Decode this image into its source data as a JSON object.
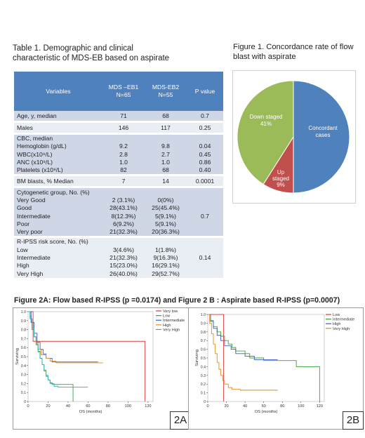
{
  "table1": {
    "title_line1": "Table 1. Demographic and clinical",
    "title_line2": "characteristic of MDS-EB based on aspirate",
    "headers": {
      "variables": "Variables",
      "eb1_line1": "MDS –EB1",
      "eb1_line2": "N=65",
      "eb2_line1": "MDS-EB2",
      "eb2_line2": "N=55",
      "pvalue": "P value"
    },
    "rows": {
      "age": {
        "label": "Age, y, median",
        "eb1": "71",
        "eb2": "68",
        "p": "0.7"
      },
      "males": {
        "label": "Males",
        "eb1": "146",
        "eb2": "117",
        "p": "0.25"
      },
      "cbc": {
        "label": "CBC, median"
      },
      "hgb": {
        "label": "Hemoglobin (g/dL)",
        "eb1": "9.2",
        "eb2": "9.8",
        "p": "0.04"
      },
      "wbc": {
        "label": "WBC(x10⁹/L)",
        "eb1": "2.8",
        "eb2": "2.7",
        "p": "0.45"
      },
      "anc": {
        "label": "ANC (x10⁹/L)",
        "eb1": "1.0",
        "eb2": "1.0",
        "p": "0.86"
      },
      "plt": {
        "label": "Platelets (x10⁹/L)",
        "eb1": "82",
        "eb2": "68",
        "p": "0.40"
      },
      "bm": {
        "label": "BM blasts, % Median",
        "eb1": "7",
        "eb2": "14",
        "p": "0.0001"
      },
      "cyto": {
        "label": "Cytogenetic group, No. (%)",
        "p": "0.7"
      },
      "vg": {
        "label": "Very Good",
        "eb1": "2 (3.1%)",
        "eb2": "0(0%)"
      },
      "good": {
        "label": "Good",
        "eb1": "28(43.1%)",
        "eb2": "25(45.4%)"
      },
      "int": {
        "label": "Intermediate",
        "eb1": "8(12.3%)",
        "eb2": "5(9.1%)"
      },
      "poor": {
        "label": "Poor",
        "eb1": "6(9.2%)",
        "eb2": "5(9.1%)"
      },
      "vpoor": {
        "label": "Very poor",
        "eb1": "21(32.3%)",
        "eb2": "20(36.3%)"
      },
      "ripss": {
        "label": "R-IPSS risk score, No. (%)",
        "p": "0.14"
      },
      "low": {
        "label": "Low",
        "eb1": "3(4.6%)",
        "eb2": "1(1.8%)"
      },
      "rint": {
        "label": "Intermediate",
        "eb1": "21(32.3%)",
        "eb2": "9(16.3%)"
      },
      "high": {
        "label": "High",
        "eb1": "15(23.0%)",
        "eb2": "16(29.1%)"
      },
      "vhigh": {
        "label": "Very High",
        "eb1": "26(40.0%)",
        "eb2": "29(52.7%)"
      }
    }
  },
  "figure1": {
    "title_line1": "Figure 1. Concordance rate of flow",
    "title_line2": "blast with aspirate",
    "slices": {
      "concordant": {
        "label_line1": "Concordant",
        "label_line2": "cases",
        "color": "#4f81bd"
      },
      "up": {
        "label_line1": "Up",
        "label_line2": "staged",
        "label_line3": "9%",
        "color": "#c0504d"
      },
      "down": {
        "label_line1": "Down staged",
        "label_line2": "41%",
        "color": "#9bbb59"
      }
    }
  },
  "figure2": {
    "title": "Figure 2A: Flow based R-IPSS (p =0.0174) and Figure 2 B : Aspirate based R-IPSS (p=0.0007)",
    "panelA": {
      "tag": "2A",
      "ylabel": "Surviving",
      "xlabel": "OS (months)",
      "yticks": [
        "0",
        "0.1",
        "0.2",
        "0.3",
        "0.4",
        "0.5",
        "0.6",
        "0.7",
        "0.8",
        "0.9",
        "1.0"
      ],
      "xticks": [
        "0",
        "20",
        "40",
        "60",
        "80",
        "100",
        "120"
      ],
      "legend": [
        "Very low",
        "Low",
        "Intermediate",
        "High",
        "Very High"
      ]
    },
    "panelB": {
      "tag": "2B",
      "ylabel": "Surviving",
      "xlabel": "OS (months)",
      "yticks": [
        "0",
        "0.1",
        "0.2",
        "0.3",
        "0.4",
        "0.5",
        "0.6",
        "0.7",
        "0.8",
        "0.9",
        "1.0"
      ],
      "xticks": [
        "0",
        "20",
        "40",
        "60",
        "80",
        "100",
        "120"
      ],
      "legend": [
        "Low",
        "Intermediate",
        "High",
        "Very High"
      ]
    }
  },
  "chart_data": [
    {
      "type": "pie",
      "title": "Figure 1. Concordance rate of flow blast with aspirate",
      "categories": [
        "Concordant cases",
        "Up staged",
        "Down staged"
      ],
      "values": [
        50,
        9,
        41
      ],
      "colors": [
        "#4f81bd",
        "#c0504d",
        "#9bbb59"
      ]
    },
    {
      "type": "line",
      "title": "2A",
      "xlabel": "OS (months)",
      "ylabel": "Surviving",
      "xlim": [
        0,
        125
      ],
      "ylim": [
        0,
        1
      ],
      "series": [
        {
          "name": "Very low",
          "color": "#e03c3c",
          "x": [
            0,
            5,
            5,
            117,
            117
          ],
          "y": [
            1,
            1,
            0.67,
            0.67,
            0
          ]
        },
        {
          "name": "Low",
          "color": "#3ca03c",
          "x": [
            0,
            2,
            3,
            4,
            6,
            8,
            10,
            12,
            14,
            16,
            18,
            20,
            22,
            24,
            45,
            45
          ],
          "y": [
            1,
            0.95,
            0.88,
            0.8,
            0.72,
            0.64,
            0.56,
            0.48,
            0.41,
            0.34,
            0.28,
            0.24,
            0.21,
            0.19,
            0.19,
            0
          ]
        },
        {
          "name": "Intermediate",
          "color": "#3c5ac8",
          "x": [
            0,
            3,
            6,
            9,
            12,
            15,
            18,
            24,
            70
          ],
          "y": [
            1,
            0.88,
            0.76,
            0.66,
            0.58,
            0.53,
            0.48,
            0.44,
            0.44
          ]
        },
        {
          "name": "High",
          "color": "#e08a1e",
          "x": [
            0,
            2,
            4,
            6,
            8,
            10,
            13,
            18,
            22,
            28,
            75
          ],
          "y": [
            1,
            0.92,
            0.82,
            0.72,
            0.65,
            0.58,
            0.52,
            0.48,
            0.45,
            0.43,
            0.43
          ]
        },
        {
          "name": "Very High",
          "color": "#28b4b4",
          "x": [
            0,
            2,
            4,
            6,
            8,
            10,
            12,
            14,
            16,
            18,
            20,
            22,
            26,
            30,
            60
          ],
          "y": [
            1,
            0.92,
            0.82,
            0.72,
            0.63,
            0.55,
            0.48,
            0.41,
            0.35,
            0.29,
            0.24,
            0.2,
            0.17,
            0.16,
            0.16
          ]
        }
      ]
    },
    {
      "type": "line",
      "title": "2B",
      "xlabel": "OS (months)",
      "ylabel": "Surviving",
      "xlim": [
        0,
        125
      ],
      "ylim": [
        0,
        1
      ],
      "series": [
        {
          "name": "Low",
          "color": "#e03c3c",
          "x": [
            0,
            17,
            17
          ],
          "y": [
            1,
            1,
            0
          ]
        },
        {
          "name": "Intermediate",
          "color": "#3ca03c",
          "x": [
            0,
            3,
            6,
            10,
            14,
            18,
            22,
            26,
            30,
            40,
            45,
            60,
            95,
            120,
            120
          ],
          "y": [
            1,
            0.93,
            0.86,
            0.8,
            0.75,
            0.7,
            0.66,
            0.62,
            0.58,
            0.55,
            0.5,
            0.47,
            0.4,
            0.4,
            0
          ]
        },
        {
          "name": "High",
          "color": "#3c5ac8",
          "x": [
            0,
            3,
            6,
            10,
            14,
            18,
            25,
            30,
            40,
            50,
            75
          ],
          "y": [
            1,
            0.92,
            0.84,
            0.76,
            0.7,
            0.64,
            0.6,
            0.55,
            0.52,
            0.48,
            0.48
          ]
        },
        {
          "name": "Very High",
          "color": "#e08a1e",
          "x": [
            0,
            2,
            4,
            6,
            8,
            10,
            12,
            14,
            16,
            18,
            22,
            26,
            35,
            75
          ],
          "y": [
            1,
            0.9,
            0.78,
            0.66,
            0.55,
            0.45,
            0.37,
            0.3,
            0.24,
            0.2,
            0.16,
            0.14,
            0.13,
            0.13
          ]
        }
      ]
    }
  ]
}
